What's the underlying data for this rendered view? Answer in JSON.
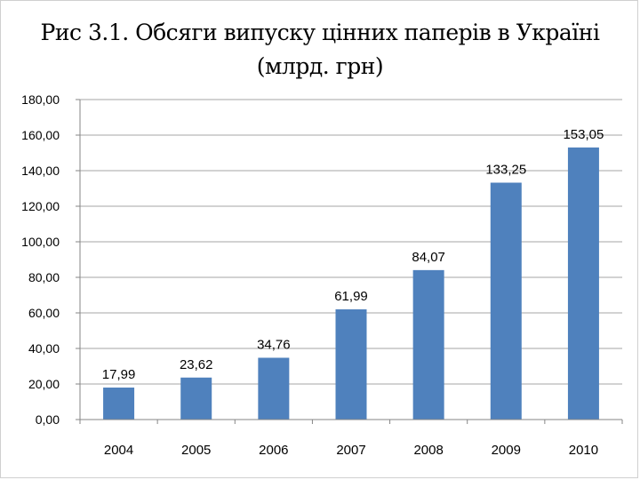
{
  "chart_data": {
    "type": "bar",
    "title_lines": [
      "Рис 3.1. Обсяги випуску цінних паперів в Україні",
      "(млрд. грн)"
    ],
    "categories": [
      "2004",
      "2005",
      "2006",
      "2007",
      "2008",
      "2009",
      "2010"
    ],
    "values": [
      17.99,
      23.62,
      34.76,
      61.99,
      84.07,
      133.25,
      153.05
    ],
    "value_labels": [
      "17,99",
      "23,62",
      "34,76",
      "61,99",
      "84,07",
      "133,25",
      "153,05"
    ],
    "y_ticks": [
      "0,00",
      "20,00",
      "40,00",
      "60,00",
      "80,00",
      "100,00",
      "120,00",
      "140,00",
      "160,00",
      "180,00"
    ],
    "ylim": [
      0,
      180
    ],
    "y_step": 20,
    "xlabel": "",
    "ylabel": "",
    "grid": true,
    "legend": "none",
    "bar_color": "#4f81bd",
    "grid_color": "#a6a6a6"
  }
}
